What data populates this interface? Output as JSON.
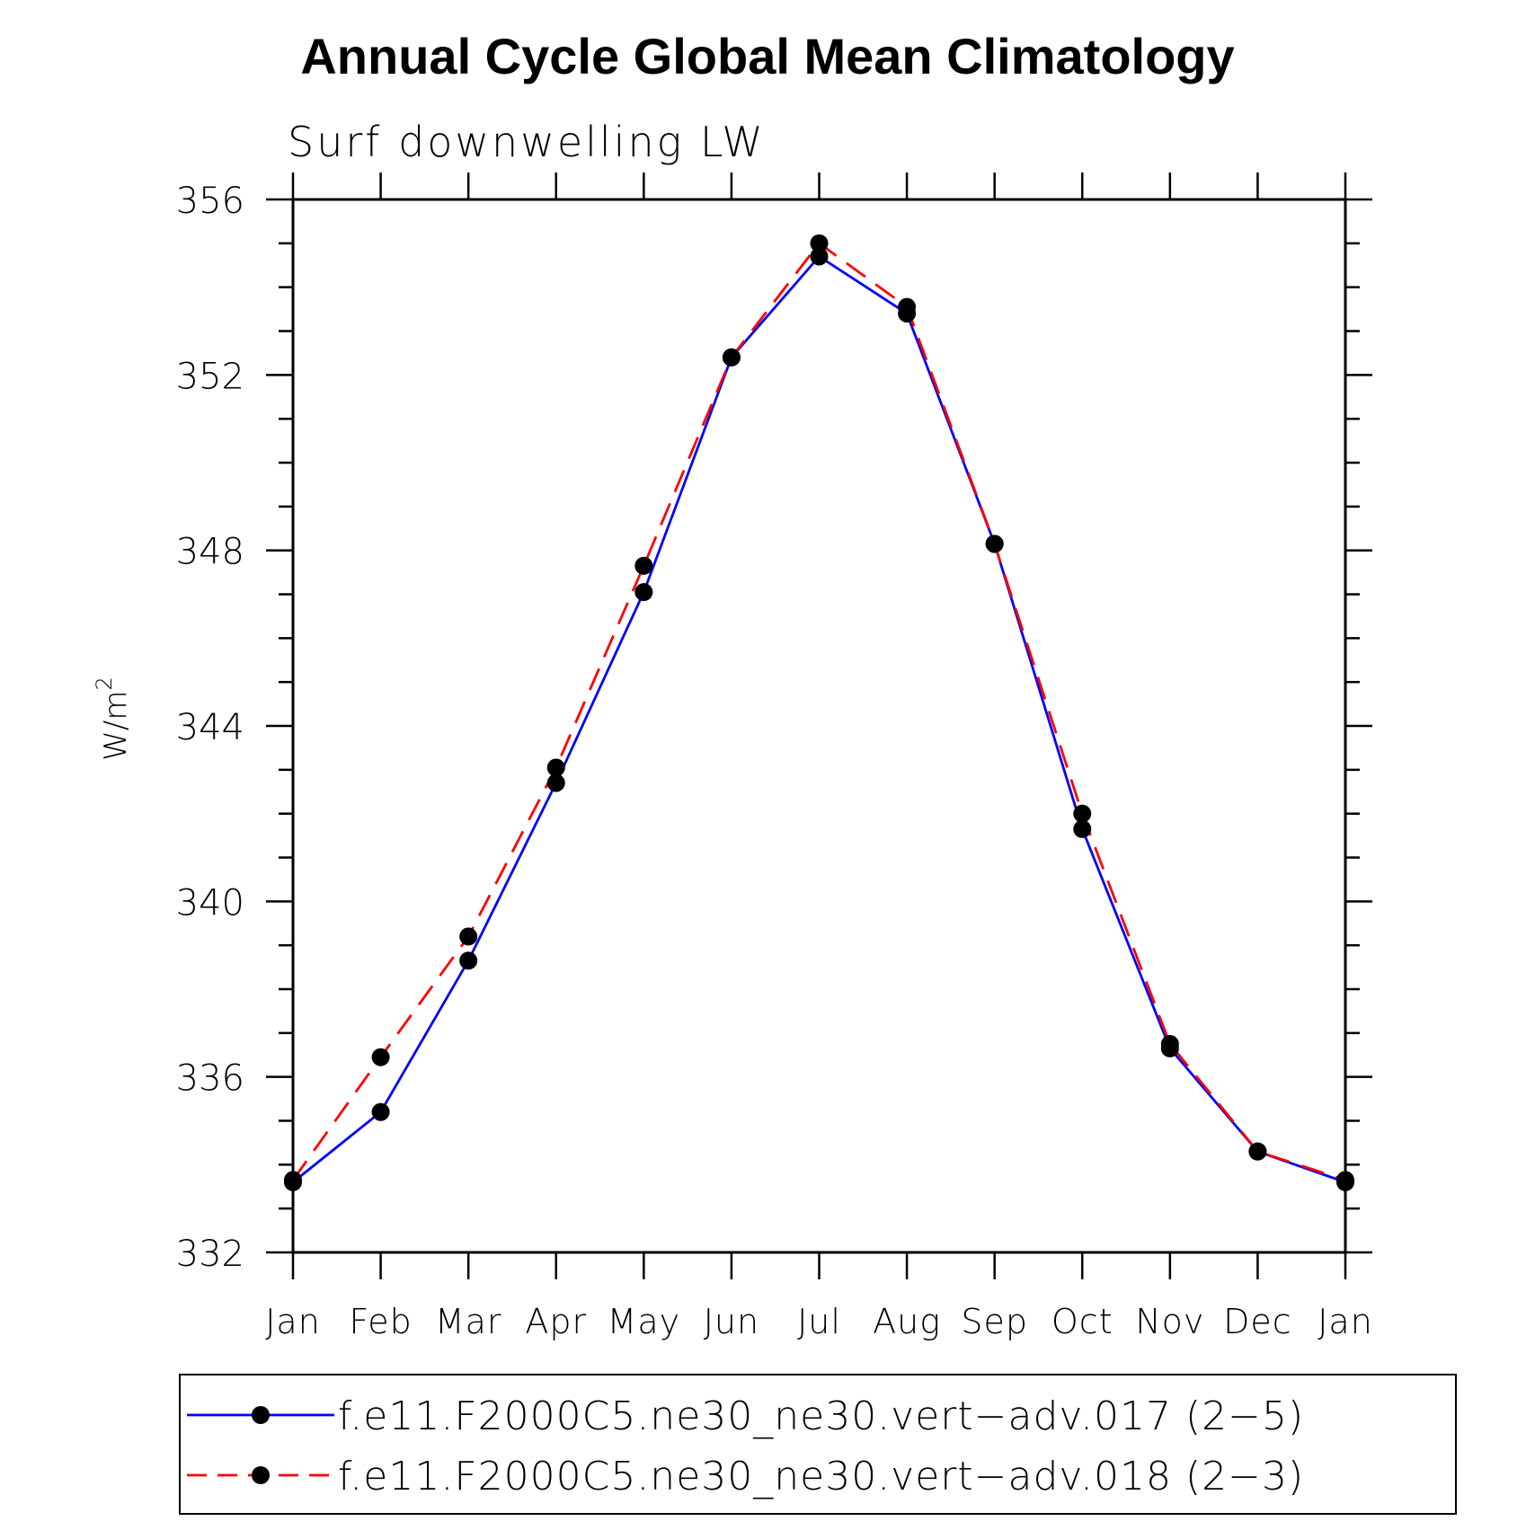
{
  "chart_data": {
    "type": "line",
    "title": "Annual Cycle Global Mean Climatology",
    "subtitle": "Surf downwelling LW",
    "ylabel": "W/m",
    "ylabel_superscript": "2",
    "xlabel": "",
    "ylim": [
      332,
      356
    ],
    "y_major_ticks": [
      332,
      336,
      340,
      344,
      348,
      352,
      356
    ],
    "y_minor_step": 1,
    "categories": [
      "Jan",
      "Feb",
      "Mar",
      "Apr",
      "May",
      "Jun",
      "Jul",
      "Aug",
      "Sep",
      "Oct",
      "Nov",
      "Dec",
      "Jan"
    ],
    "grid": false,
    "legend_position": "bottom",
    "series": [
      {
        "name": "f.e11.F2000C5.ne30_ne30.vert−adv.017 (2−5)",
        "color": "#0000ff",
        "line_style": "solid",
        "marker": "circle",
        "values": [
          333.6,
          335.2,
          338.65,
          342.7,
          347.05,
          352.4,
          354.7,
          353.4,
          348.15,
          341.65,
          336.65,
          334.3,
          333.6
        ]
      },
      {
        "name": "f.e11.F2000C5.ne30_ne30.vert−adv.018 (2−3)",
        "color": "#ff0000",
        "line_style": "dashed",
        "marker": "circle",
        "values": [
          333.65,
          336.45,
          339.2,
          343.05,
          347.65,
          352.4,
          355.0,
          353.55,
          348.15,
          342.0,
          336.75,
          334.3,
          333.65
        ]
      }
    ]
  }
}
